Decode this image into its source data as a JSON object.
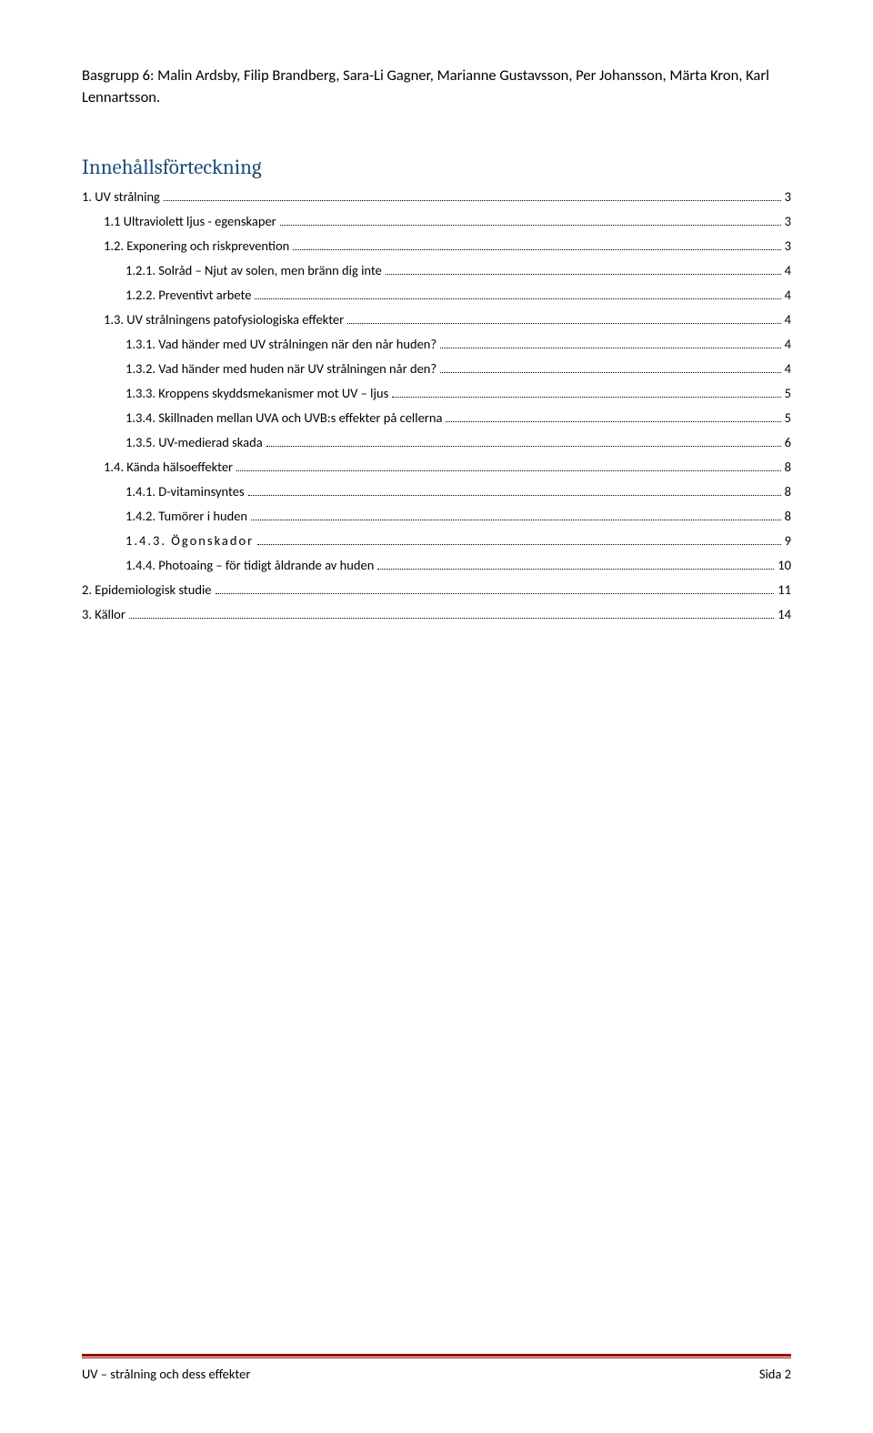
{
  "header": {
    "text": "Basgrupp 6: Malin Ardsby, Filip Brandberg, Sara-Li Gagner, Marianne Gustavsson, Per Johansson, Märta Kron, Karl Lennartsson."
  },
  "toc": {
    "title": "Innehållsförteckning",
    "title_color": "#1f4e79",
    "entries": [
      {
        "label": "1. UV strålning",
        "page": "3",
        "level": 0,
        "spaced": false
      },
      {
        "label": "1.1 Ultraviolett ljus - egenskaper",
        "page": "3",
        "level": 1,
        "spaced": false
      },
      {
        "label": "1.2. Exponering och riskprevention",
        "page": "3",
        "level": 1,
        "spaced": false
      },
      {
        "label": "1.2.1. Solråd – Njut av solen, men bränn dig inte",
        "page": "4",
        "level": 2,
        "spaced": false
      },
      {
        "label": "1.2.2. Preventivt arbete",
        "page": "4",
        "level": 2,
        "spaced": false
      },
      {
        "label": "1.3. UV strålningens patofysiologiska effekter",
        "page": "4",
        "level": 1,
        "spaced": false
      },
      {
        "label": "1.3.1. Vad händer med UV strålningen när den når huden? ",
        "page": "4",
        "level": 2,
        "spaced": false
      },
      {
        "label": "1.3.2. Vad händer med huden när UV strålningen når den?",
        "page": "4",
        "level": 2,
        "spaced": false
      },
      {
        "label": "1.3.3. Kroppens skyddsmekanismer mot UV – ljus",
        "page": "5",
        "level": 2,
        "spaced": false
      },
      {
        "label": "1.3.4. Skillnaden mellan UVA och UVB:s effekter på cellerna",
        "page": "5",
        "level": 2,
        "spaced": false
      },
      {
        "label": "1.3.5. UV-medierad skada",
        "page": "6",
        "level": 2,
        "spaced": false
      },
      {
        "label": "1.4. Kända hälsoeffekter",
        "page": "8",
        "level": 1,
        "spaced": false
      },
      {
        "label": "1.4.1. D-vitaminsyntes",
        "page": "8",
        "level": 2,
        "spaced": false
      },
      {
        "label": "1.4.2. Tumörer i huden",
        "page": "8",
        "level": 2,
        "spaced": false
      },
      {
        "label": "1.4.3. Ögonskador",
        "page": "9",
        "level": 2,
        "spaced": true
      },
      {
        "label": "1.4.4. Photoaing – för tidigt åldrande av huden",
        "page": "10",
        "level": 2,
        "spaced": false
      },
      {
        "label": "2. Epidemiologisk studie",
        "page": "11",
        "level": 0,
        "spaced": false
      },
      {
        "label": "3. Källor",
        "page": "14",
        "level": 0,
        "spaced": false
      }
    ]
  },
  "footer": {
    "left": "UV – strålning och dess effekter",
    "right": "Sida 2",
    "line_color": "#970e02"
  }
}
